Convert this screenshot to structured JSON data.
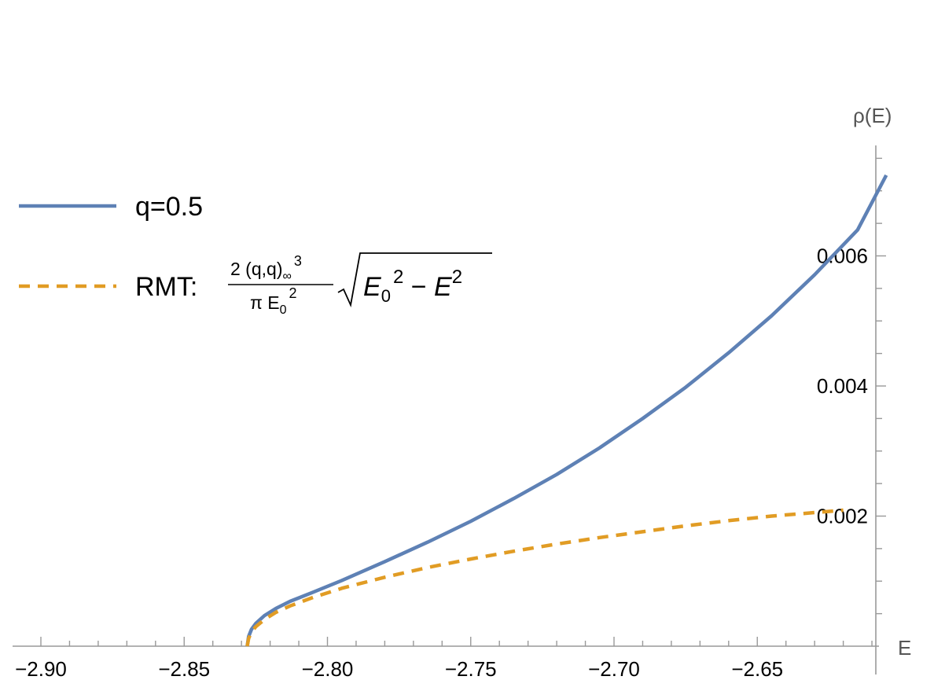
{
  "chart_data": {
    "type": "line",
    "title": "",
    "xlabel": "E",
    "ylabel": "ρ(E)",
    "xlim": [
      -2.915,
      -2.6
    ],
    "ylim": [
      0,
      0.0075
    ],
    "x_ticks": [
      "−2.90",
      "−2.85",
      "−2.80",
      "−2.75",
      "−2.70",
      "−2.65"
    ],
    "x_tick_values": [
      -2.9,
      -2.85,
      -2.8,
      -2.75,
      -2.7,
      -2.65
    ],
    "y_ticks": [
      "0.002",
      "0.004",
      "0.006"
    ],
    "y_tick_values": [
      0.002,
      0.004,
      0.006
    ],
    "grid": false,
    "legend_position": "top-left",
    "series": [
      {
        "name": "q=0.5",
        "style": "solid",
        "color": "#5e81b5",
        "x": [
          -2.828,
          -2.8275,
          -2.8265,
          -2.825,
          -2.822,
          -2.818,
          -2.813,
          -2.805,
          -2.795,
          -2.78,
          -2.765,
          -2.75,
          -2.735,
          -2.72,
          -2.705,
          -2.69,
          -2.675,
          -2.66,
          -2.645,
          -2.63,
          -2.615,
          -2.605
        ],
        "y": [
          0.0,
          0.00015,
          0.00026,
          0.00035,
          0.00047,
          0.00058,
          0.00069,
          0.00083,
          0.00101,
          0.0013,
          0.0016,
          0.00192,
          0.00227,
          0.00264,
          0.00305,
          0.0035,
          0.00398,
          0.00451,
          0.00508,
          0.00571,
          0.0064,
          0.00724
        ]
      },
      {
        "name": "RMT:",
        "style": "dashed",
        "color": "#e19c24",
        "x": [
          -2.828,
          -2.8275,
          -2.8265,
          -2.825,
          -2.822,
          -2.818,
          -2.813,
          -2.805,
          -2.795,
          -2.78,
          -2.765,
          -2.75,
          -2.735,
          -2.72,
          -2.705,
          -2.69,
          -2.675,
          -2.66,
          -2.645,
          -2.62
        ],
        "y": [
          0.0,
          0.00012,
          0.00022,
          0.0003,
          0.00041,
          0.00052,
          0.00062,
          0.00075,
          0.00089,
          0.00106,
          0.00121,
          0.00134,
          0.00146,
          0.00157,
          0.00167,
          0.00176,
          0.00185,
          0.00193,
          0.002,
          0.00209
        ]
      }
    ],
    "legend": {
      "entries": [
        {
          "label": "q=0.5",
          "style": "solid",
          "color": "#5e81b5"
        },
        {
          "label": "RMT:",
          "style": "dashed",
          "color": "#e19c24"
        }
      ],
      "formula": {
        "num_prefix": "2 (q,q)",
        "num_sub": "∞",
        "num_sup": "3",
        "den_prefix": "π E",
        "den_sub": "0",
        "den_sup": "2",
        "root_a": "E",
        "root_a_sub": "0",
        "root_a_sup": "2",
        "root_minus": " − ",
        "root_b": "E",
        "root_b_sup": "2"
      }
    }
  }
}
